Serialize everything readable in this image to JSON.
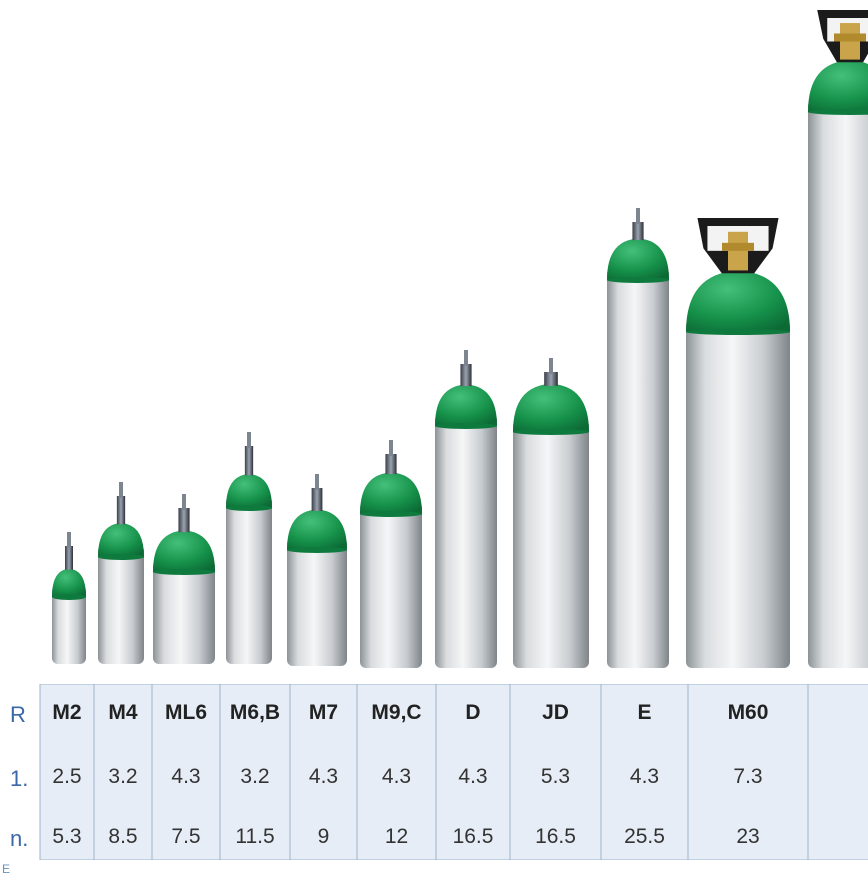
{
  "table": {
    "row_labels": [
      "R",
      "1.",
      "n."
    ],
    "columns": [
      "M2",
      "M4",
      "ML6",
      "M6,B",
      "M7",
      "M9,C",
      "D",
      "JD",
      "E",
      "M60"
    ],
    "row2": [
      "2.5",
      "3.2",
      "4.3",
      "3.2",
      "4.3",
      "4.3",
      "4.3",
      "5.3",
      "4.3",
      "7.3"
    ],
    "row3": [
      "5.3",
      "8.5",
      "7.5",
      "11.5",
      "9",
      "12",
      "16.5",
      "16.5",
      "25.5",
      "23"
    ],
    "footer_stub": "E"
  },
  "colors": {
    "cylinder_green": "#1f9a52",
    "aluminum": "#cfd3d6",
    "table_bg": "#e6edf6",
    "table_border": "#9fb3cc"
  }
}
